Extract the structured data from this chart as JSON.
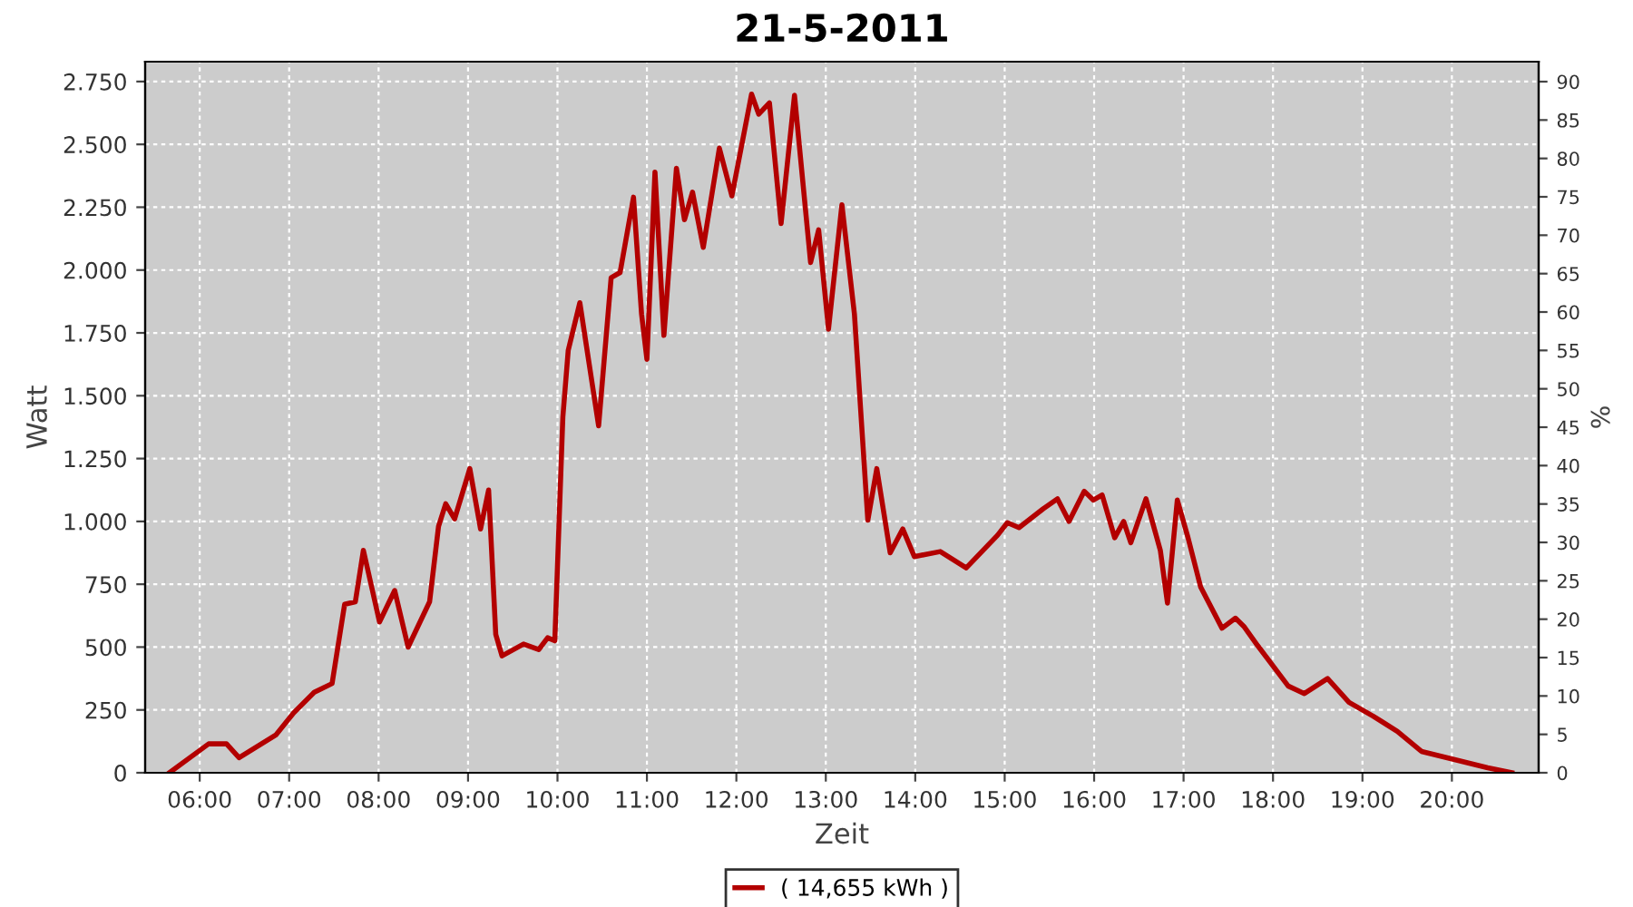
{
  "chart_data": {
    "type": "line",
    "title": "21-5-2011",
    "xlabel": "Zeit",
    "ylabel": "Watt",
    "y2label": "%",
    "x": [
      5.66,
      6.1,
      6.3,
      6.44,
      6.85,
      7.05,
      7.28,
      7.48,
      7.62,
      7.74,
      7.83,
      8.01,
      8.18,
      8.33,
      8.57,
      8.67,
      8.75,
      8.85,
      9.02,
      9.14,
      9.23,
      9.31,
      9.38,
      9.62,
      9.79,
      9.89,
      9.97,
      10.06,
      10.12,
      10.25,
      10.46,
      10.6,
      10.7,
      10.85,
      10.94,
      11.0,
      11.09,
      11.19,
      11.33,
      11.42,
      11.51,
      11.63,
      11.81,
      11.95,
      12.17,
      12.25,
      12.37,
      12.5,
      12.65,
      12.83,
      12.92,
      13.03,
      13.18,
      13.32,
      13.47,
      13.57,
      13.72,
      13.86,
      13.99,
      14.28,
      14.57,
      14.92,
      15.03,
      15.16,
      15.43,
      15.59,
      15.72,
      15.89,
      15.99,
      16.09,
      16.23,
      16.33,
      16.41,
      16.58,
      16.74,
      16.82,
      16.93,
      17.05,
      17.19,
      17.43,
      17.58,
      17.68,
      17.83,
      18.17,
      18.35,
      18.61,
      18.85,
      19.12,
      19.39,
      19.66,
      20.0,
      20.4,
      20.67
    ],
    "series": [
      {
        "name": "( 14,655 kWh )",
        "color": "#b30000",
        "values": [
          0,
          115,
          115,
          60,
          150,
          238,
          320,
          355,
          670,
          680,
          885,
          600,
          725,
          500,
          680,
          980,
          1070,
          1010,
          1210,
          970,
          1125,
          550,
          465,
          512,
          490,
          537,
          525,
          1415,
          1680,
          1870,
          1380,
          1970,
          1990,
          2290,
          1825,
          1645,
          2390,
          1740,
          2405,
          2200,
          2310,
          2090,
          2485,
          2295,
          2700,
          2620,
          2665,
          2185,
          2695,
          2030,
          2160,
          1765,
          2260,
          1825,
          1005,
          1210,
          875,
          970,
          860,
          880,
          815,
          945,
          995,
          975,
          1050,
          1090,
          1000,
          1120,
          1085,
          1105,
          935,
          1000,
          915,
          1090,
          885,
          675,
          1085,
          935,
          740,
          575,
          615,
          580,
          505,
          345,
          315,
          375,
          280,
          225,
          165,
          85,
          55,
          20,
          0
        ]
      }
    ],
    "xlim": [
      5.39,
      20.97
    ],
    "xticks": [
      {
        "value": 6,
        "label": "06:00"
      },
      {
        "value": 7,
        "label": "07:00"
      },
      {
        "value": 8,
        "label": "08:00"
      },
      {
        "value": 9,
        "label": "09:00"
      },
      {
        "value": 10,
        "label": "10:00"
      },
      {
        "value": 11,
        "label": "11:00"
      },
      {
        "value": 12,
        "label": "12:00"
      },
      {
        "value": 13,
        "label": "13:00"
      },
      {
        "value": 14,
        "label": "14:00"
      },
      {
        "value": 15,
        "label": "15:00"
      },
      {
        "value": 16,
        "label": "16:00"
      },
      {
        "value": 17,
        "label": "17:00"
      },
      {
        "value": 18,
        "label": "18:00"
      },
      {
        "value": 19,
        "label": "19:00"
      },
      {
        "value": 20,
        "label": "20:00"
      }
    ],
    "ylim": [
      0,
      2829
    ],
    "yticks": [
      0,
      250,
      500,
      750,
      {
        "value": 1000,
        "label": "1.000"
      },
      {
        "value": 1250,
        "label": "1.250"
      },
      {
        "value": 1500,
        "label": "1.500"
      },
      {
        "value": 1750,
        "label": "1.750"
      },
      {
        "value": 2000,
        "label": "2.000"
      },
      {
        "value": 2250,
        "label": "2.250"
      },
      {
        "value": 2500,
        "label": "2.500"
      },
      {
        "value": 2750,
        "label": "2.750"
      }
    ],
    "y2lim": [
      0,
      92.6
    ],
    "y2ticks": [
      0,
      5,
      10,
      15,
      20,
      25,
      30,
      35,
      40,
      45,
      50,
      55,
      60,
      65,
      70,
      75,
      80,
      85,
      90
    ],
    "grid": true,
    "legend": "bottom",
    "marker": "none",
    "line_style": "solid"
  }
}
